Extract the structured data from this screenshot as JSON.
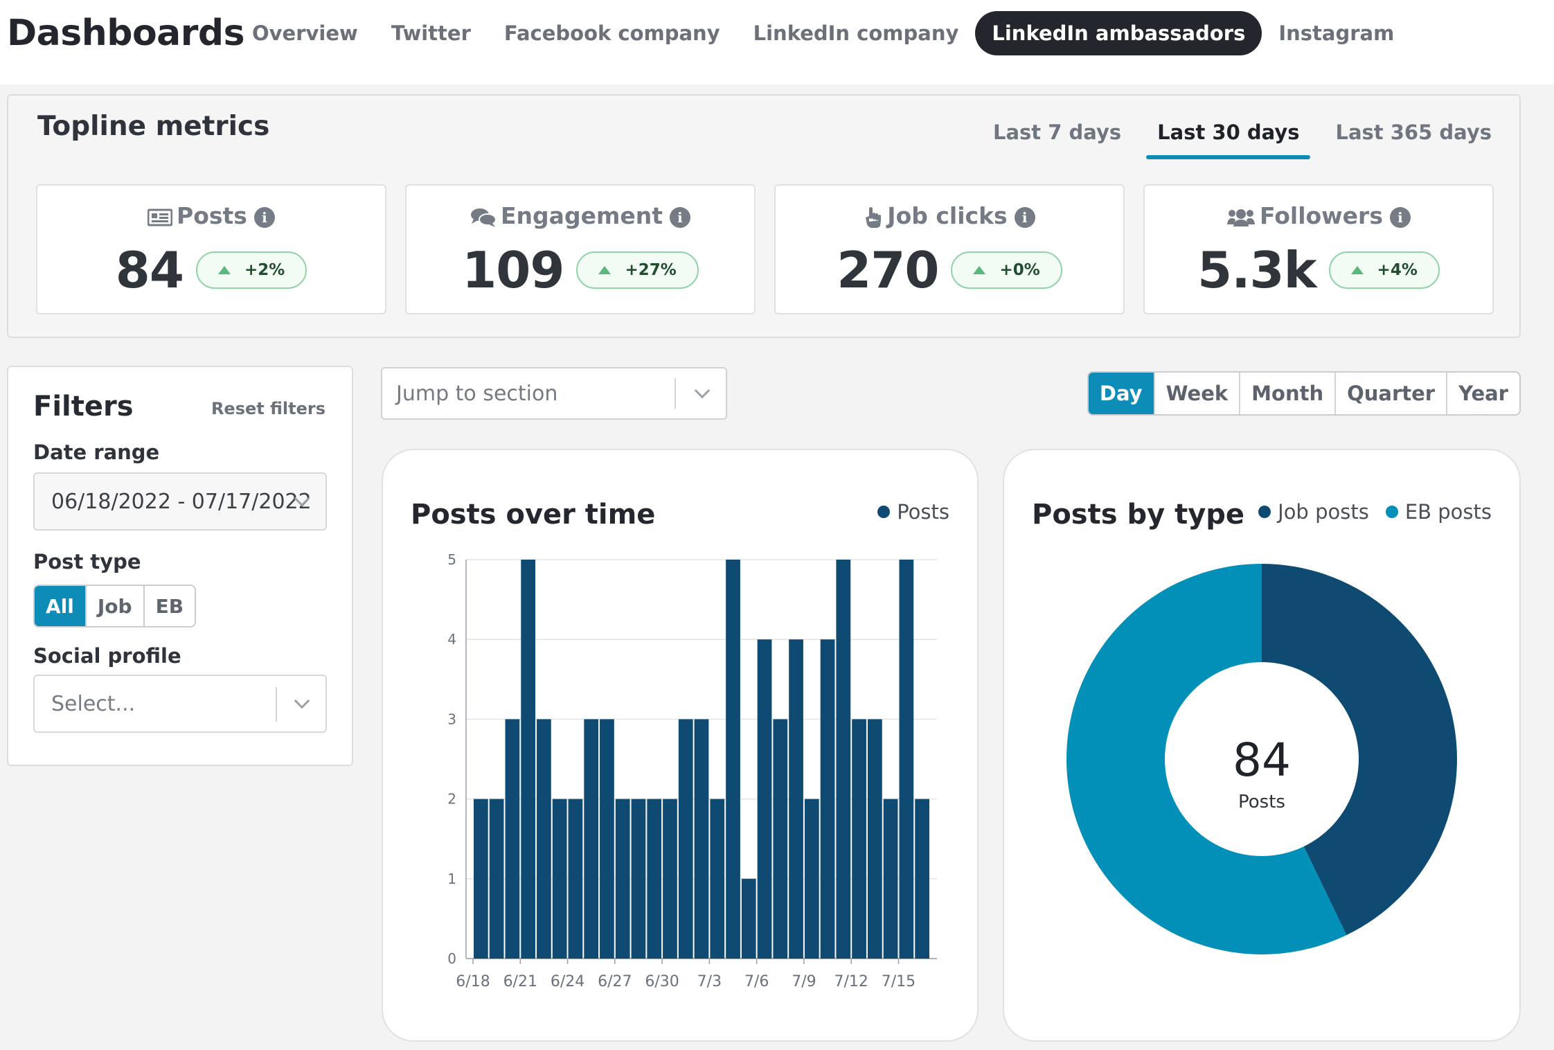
{
  "header": {
    "title": "Dashboards",
    "tabs": [
      "Overview",
      "Twitter",
      "Facebook company",
      "LinkedIn company",
      "LinkedIn ambassadors",
      "Instagram"
    ],
    "active_tab": "LinkedIn ambassadors"
  },
  "topline": {
    "title": "Topline metrics",
    "ranges": [
      "Last 7 days",
      "Last 30 days",
      "Last 365 days"
    ],
    "active_range": "Last 30 days",
    "metrics": [
      {
        "label": "Posts",
        "icon": "newspaper-icon",
        "value": "84",
        "delta": "+2%"
      },
      {
        "label": "Engagement",
        "icon": "comments-icon",
        "value": "109",
        "delta": "+27%"
      },
      {
        "label": "Job clicks",
        "icon": "pointer-hand-icon",
        "value": "270",
        "delta": "+0%"
      },
      {
        "label": "Followers",
        "icon": "users-icon",
        "value": "5.3k",
        "delta": "+4%"
      }
    ]
  },
  "filters": {
    "title": "Filters",
    "reset": "Reset filters",
    "date_range_label": "Date range",
    "date_range_value": "06/18/2022 - 07/17/2022",
    "post_type_label": "Post type",
    "post_types": [
      "All",
      "Job",
      "EB"
    ],
    "active_post_type": "All",
    "social_profile_label": "Social profile",
    "social_profile_placeholder": "Select..."
  },
  "jump": {
    "placeholder": "Jump to section"
  },
  "granularity": {
    "options": [
      "Day",
      "Week",
      "Month",
      "Quarter",
      "Year"
    ],
    "active": "Day"
  },
  "colors": {
    "primary_dark": "#0f4a73",
    "primary_light": "#0290b9",
    "accent": "#0e8cb8"
  },
  "chart_data": [
    {
      "type": "bar",
      "title": "Posts over time",
      "series": [
        {
          "name": "Posts",
          "values": [
            2,
            2,
            3,
            5,
            3,
            2,
            2,
            3,
            3,
            2,
            2,
            2,
            2,
            3,
            3,
            2,
            5,
            1,
            4,
            3,
            4,
            2,
            4,
            5,
            3,
            3,
            2,
            5,
            2
          ]
        }
      ],
      "categories": [
        "6/18",
        "6/19",
        "6/20",
        "6/21",
        "6/22",
        "6/23",
        "6/24",
        "6/25",
        "6/26",
        "6/27",
        "6/28",
        "6/29",
        "6/30",
        "7/1",
        "7/2",
        "7/3",
        "7/4",
        "7/5",
        "7/6",
        "7/7",
        "7/8",
        "7/9",
        "7/10",
        "7/11",
        "7/12",
        "7/13",
        "7/14",
        "7/15",
        "7/16"
      ],
      "x_tick_labels": [
        "6/18",
        "6/21",
        "6/24",
        "6/27",
        "6/30",
        "7/3",
        "7/6",
        "7/9",
        "7/12",
        "7/15"
      ],
      "y_tick_labels": [
        "0",
        "1",
        "2",
        "3",
        "4",
        "5"
      ],
      "ylim": [
        0,
        5
      ],
      "grid": true,
      "legend": "top-right"
    },
    {
      "type": "pie",
      "title": "Posts by type",
      "center_value": "84",
      "center_label": "Posts",
      "slices": [
        {
          "name": "Job posts",
          "value": 36,
          "color": "#0f4a73"
        },
        {
          "name": "EB posts",
          "value": 48,
          "color": "#0290b9"
        }
      ],
      "legend": "top-right"
    }
  ]
}
